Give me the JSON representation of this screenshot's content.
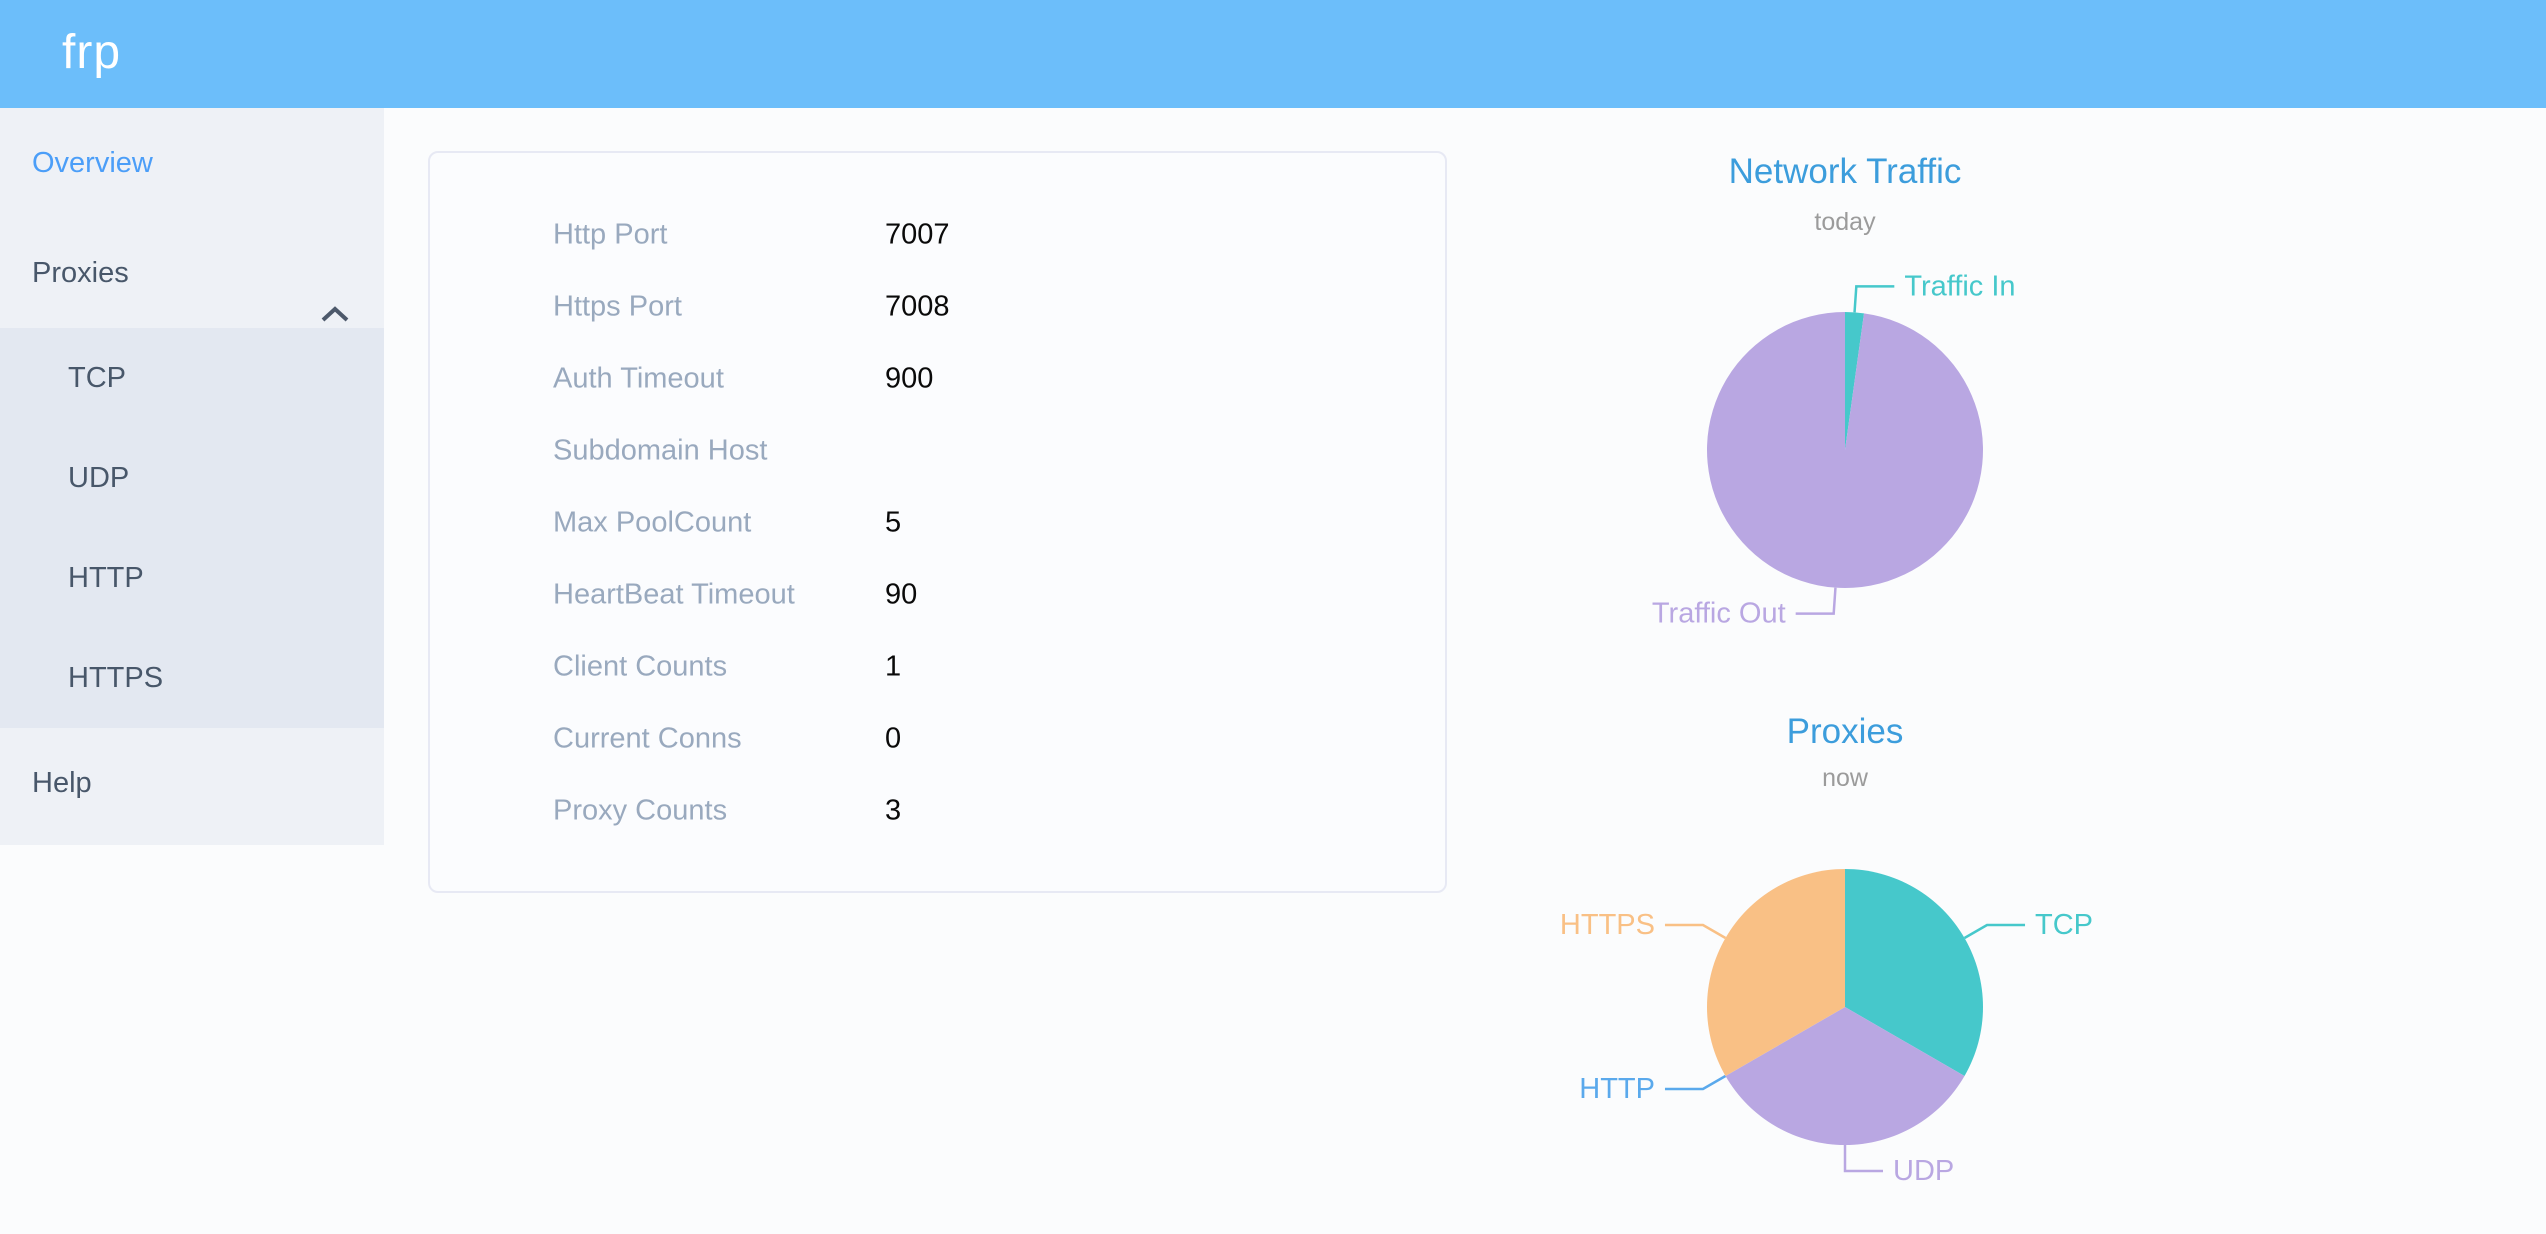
{
  "header": {
    "logo_text": "frp"
  },
  "sidebar": {
    "items": [
      {
        "label": "Overview",
        "active": true
      },
      {
        "label": "Proxies",
        "expanded": true,
        "children": [
          "TCP",
          "UDP",
          "HTTP",
          "HTTPS"
        ]
      },
      {
        "label": "Help",
        "active": false
      }
    ]
  },
  "server_info": {
    "rows": [
      {
        "label": "Http Port",
        "value": "7007"
      },
      {
        "label": "Https Port",
        "value": "7008"
      },
      {
        "label": "Auth Timeout",
        "value": "900"
      },
      {
        "label": "Subdomain Host",
        "value": ""
      },
      {
        "label": "Max PoolCount",
        "value": "5"
      },
      {
        "label": "HeartBeat Timeout",
        "value": "90"
      },
      {
        "label": "Client Counts",
        "value": "1"
      },
      {
        "label": "Current Conns",
        "value": "0"
      },
      {
        "label": "Proxy Counts",
        "value": "3"
      }
    ]
  },
  "chart_data": [
    {
      "type": "pie",
      "title": "Network Traffic",
      "subtitle": "today",
      "legend_position": "callout-labels",
      "values_unit": "percent (estimated from pie angles)",
      "slices": [
        {
          "label": "Traffic In",
          "value": 2.2,
          "color": "#46C8CB"
        },
        {
          "label": "Traffic Out",
          "value": 97.8,
          "color": "#B9A7E2"
        }
      ]
    },
    {
      "type": "pie",
      "title": "Proxies",
      "subtitle": "now",
      "legend_position": "callout-labels",
      "values_unit": "proxy count",
      "slices": [
        {
          "label": "TCP",
          "value": 1,
          "color": "#46C8CB"
        },
        {
          "label": "UDP",
          "value": 1,
          "color": "#B9A7E2"
        },
        {
          "label": "HTTP",
          "value": 0,
          "color": "#5AA9EC"
        },
        {
          "label": "HTTPS",
          "value": 1,
          "color": "#F9C085"
        }
      ]
    }
  ],
  "colors": {
    "header_bg": "#6CBEFA",
    "sidebar_bg": "#EEF1F6",
    "submenu_bg": "#E3E8F1",
    "sidebar_text": "#48576A",
    "active_item": "#4B9EF8",
    "chart_title_blue": "#3C9DDC",
    "subtitle_gray": "#9B9B9B",
    "table_label_gray": "#99A9BE"
  }
}
